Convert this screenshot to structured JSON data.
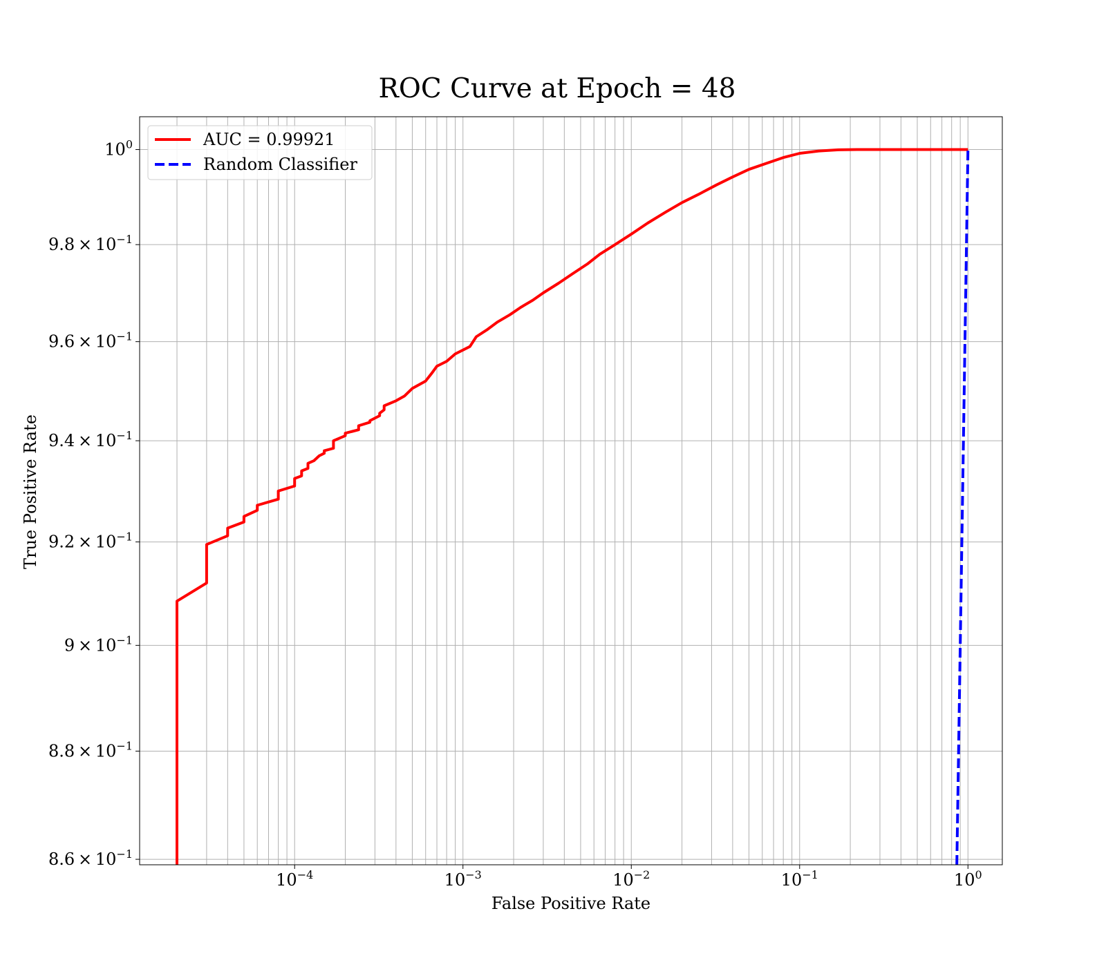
{
  "chart_data": {
    "type": "line",
    "title": "ROC Curve at Epoch = 48",
    "xlabel": "False Positive Rate",
    "ylabel": "True Positive Rate",
    "xscale": "log",
    "yscale": "log",
    "xlim": [
      1.2e-05,
      1.6
    ],
    "ylim": [
      0.859,
      1.007
    ],
    "grid": true,
    "legend_position": "top-left",
    "x_ticks": [
      {
        "value": 0.0001,
        "base": "10",
        "exp": "−4"
      },
      {
        "value": 0.001,
        "base": "10",
        "exp": "−3"
      },
      {
        "value": 0.01,
        "base": "10",
        "exp": "−2"
      },
      {
        "value": 0.1,
        "base": "10",
        "exp": "−1"
      },
      {
        "value": 1,
        "base": "10",
        "exp": "0"
      }
    ],
    "y_ticks": [
      {
        "value": 1.0,
        "mant": "",
        "base": "10",
        "exp": "0"
      },
      {
        "value": 0.98,
        "mant": "9.8",
        "base": "10",
        "exp": "−1"
      },
      {
        "value": 0.96,
        "mant": "9.6",
        "base": "10",
        "exp": "−1"
      },
      {
        "value": 0.94,
        "mant": "9.4",
        "base": "10",
        "exp": "−1"
      },
      {
        "value": 0.92,
        "mant": "9.2",
        "base": "10",
        "exp": "−1"
      },
      {
        "value": 0.9,
        "mant": "9",
        "base": "10",
        "exp": "−1"
      },
      {
        "value": 0.88,
        "mant": "8.8",
        "base": "10",
        "exp": "−1"
      },
      {
        "value": 0.86,
        "mant": "8.6",
        "base": "10",
        "exp": "−1"
      }
    ],
    "series": [
      {
        "name": "AUC = 0.99921",
        "color": "#ff0000",
        "dash": "solid",
        "points": [
          [
            2e-05,
            0.859
          ],
          [
            2e-05,
            0.875
          ],
          [
            2e-05,
            0.9085
          ],
          [
            3e-05,
            0.912
          ],
          [
            3e-05,
            0.9195
          ],
          [
            4e-05,
            0.9212
          ],
          [
            4e-05,
            0.9227
          ],
          [
            5e-05,
            0.9239
          ],
          [
            5e-05,
            0.925
          ],
          [
            6e-05,
            0.9262
          ],
          [
            6e-05,
            0.9272
          ],
          [
            8e-05,
            0.9284
          ],
          [
            8e-05,
            0.93
          ],
          [
            0.0001,
            0.931
          ],
          [
            0.0001,
            0.9325
          ],
          [
            0.00011,
            0.933
          ],
          [
            0.00011,
            0.934
          ],
          [
            0.00012,
            0.9345
          ],
          [
            0.00012,
            0.9355
          ],
          [
            0.00013,
            0.936
          ],
          [
            0.00014,
            0.937
          ],
          [
            0.00015,
            0.9375
          ],
          [
            0.00015,
            0.938
          ],
          [
            0.00017,
            0.9385
          ],
          [
            0.00017,
            0.94
          ],
          [
            0.0002,
            0.941
          ],
          [
            0.0002,
            0.9415
          ],
          [
            0.00024,
            0.9422
          ],
          [
            0.00024,
            0.943
          ],
          [
            0.00028,
            0.9437
          ],
          [
            0.00028,
            0.944
          ],
          [
            0.00032,
            0.945
          ],
          [
            0.00032,
            0.9455
          ],
          [
            0.00034,
            0.9462
          ],
          [
            0.00034,
            0.947
          ],
          [
            0.0004,
            0.948
          ],
          [
            0.00045,
            0.949
          ],
          [
            0.0005,
            0.9505
          ],
          [
            0.0006,
            0.952
          ],
          [
            0.00065,
            0.9535
          ],
          [
            0.0007,
            0.955
          ],
          [
            0.0008,
            0.956
          ],
          [
            0.0009,
            0.9575
          ],
          [
            0.0011,
            0.959
          ],
          [
            0.0012,
            0.961
          ],
          [
            0.0014,
            0.9625
          ],
          [
            0.0016,
            0.964
          ],
          [
            0.0019,
            0.9655
          ],
          [
            0.0022,
            0.967
          ],
          [
            0.0026,
            0.9685
          ],
          [
            0.003,
            0.97
          ],
          [
            0.0037,
            0.972
          ],
          [
            0.0045,
            0.974
          ],
          [
            0.0055,
            0.976
          ],
          [
            0.0065,
            0.978
          ],
          [
            0.008,
            0.98
          ],
          [
            0.01,
            0.9822
          ],
          [
            0.0125,
            0.9845
          ],
          [
            0.016,
            0.9868
          ],
          [
            0.02,
            0.9888
          ],
          [
            0.025,
            0.9905
          ],
          [
            0.032,
            0.9925
          ],
          [
            0.04,
            0.9942
          ],
          [
            0.05,
            0.9958
          ],
          [
            0.065,
            0.9972
          ],
          [
            0.08,
            0.9983
          ],
          [
            0.1,
            0.9992
          ],
          [
            0.13,
            0.9997
          ],
          [
            0.17,
            0.99995
          ],
          [
            0.22,
            1.0
          ],
          [
            1.0,
            1.0
          ]
        ]
      },
      {
        "name": "Random Classifier",
        "color": "#0000ff",
        "dash": "dashed",
        "points": [
          [
            0.859,
            0.859
          ],
          [
            1.0,
            1.0
          ]
        ]
      }
    ]
  }
}
